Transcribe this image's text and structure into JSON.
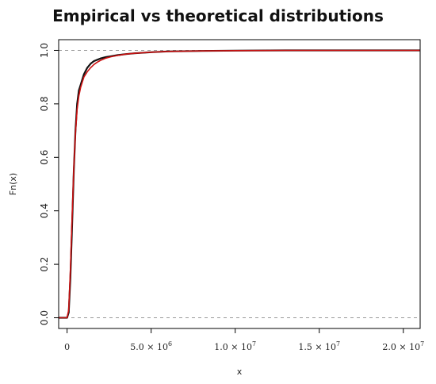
{
  "chart_data": {
    "type": "line",
    "title": "Empirical vs theoretical distributions",
    "xlabel": "x",
    "ylabel": "Fn(x)",
    "xlim": [
      -500000,
      21000000
    ],
    "ylim": [
      -0.04,
      1.04
    ],
    "grid": false,
    "legend": "none",
    "reference_lines_y": [
      0,
      1
    ],
    "x_ticks": [
      {
        "value": 0,
        "mantissa": "0",
        "exponent": ""
      },
      {
        "value": 5000000,
        "mantissa": "5.0 × 10",
        "exponent": "6"
      },
      {
        "value": 10000000,
        "mantissa": "1.0 × 10",
        "exponent": "7"
      },
      {
        "value": 15000000,
        "mantissa": "1.5 × 10",
        "exponent": "7"
      },
      {
        "value": 20000000,
        "mantissa": "2.0 × 10",
        "exponent": "7"
      }
    ],
    "y_ticks": [
      {
        "value": 0.0,
        "label": "0.0"
      },
      {
        "value": 0.2,
        "label": "0.2"
      },
      {
        "value": 0.4,
        "label": "0.4"
      },
      {
        "value": 0.6,
        "label": "0.6"
      },
      {
        "value": 0.8,
        "label": "0.8"
      },
      {
        "value": 1.0,
        "label": "1.0"
      }
    ],
    "series": [
      {
        "color": "#111111",
        "x": [
          -500000,
          0,
          100000,
          200000,
          300000,
          400000,
          500000,
          600000,
          700000,
          800000,
          900000,
          1000000,
          1200000,
          1400000,
          1600000,
          1800000,
          2000000,
          2300000,
          2600000,
          3000000,
          3500000,
          4000000,
          5000000,
          6000000,
          8000000,
          10000000,
          13000000,
          16000000,
          21000000
        ],
        "y": [
          0,
          0,
          0.02,
          0.15,
          0.35,
          0.55,
          0.7,
          0.8,
          0.85,
          0.87,
          0.89,
          0.91,
          0.935,
          0.95,
          0.96,
          0.965,
          0.97,
          0.975,
          0.978,
          0.982,
          0.986,
          0.989,
          0.993,
          0.996,
          0.998,
          0.999,
          1.0,
          1.0,
          1.0
        ]
      },
      {
        "color": "#cc1111",
        "x": [
          -500000,
          0,
          100000,
          200000,
          300000,
          400000,
          500000,
          600000,
          700000,
          800000,
          900000,
          1000000,
          1200000,
          1400000,
          1600000,
          1800000,
          2000000,
          2300000,
          2600000,
          3000000,
          3500000,
          4000000,
          5000000,
          6000000,
          8000000,
          10000000,
          13000000,
          16000000,
          21000000
        ],
        "y": [
          0,
          0,
          0.03,
          0.18,
          0.38,
          0.56,
          0.69,
          0.78,
          0.83,
          0.86,
          0.88,
          0.9,
          0.92,
          0.935,
          0.947,
          0.956,
          0.963,
          0.971,
          0.976,
          0.981,
          0.986,
          0.989,
          0.993,
          0.996,
          0.998,
          0.999,
          1.0,
          1.0,
          1.0
        ]
      }
    ]
  }
}
